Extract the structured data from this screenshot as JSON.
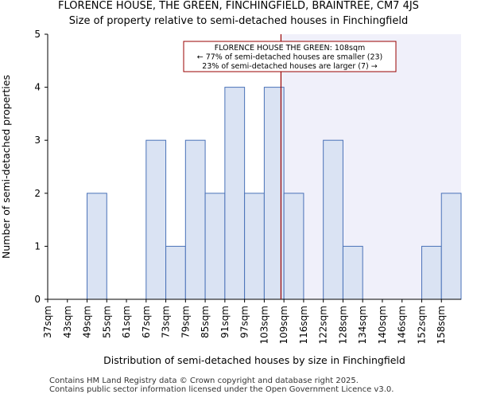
{
  "title_line1": "FLORENCE HOUSE, THE GREEN, FINCHINGFIELD, BRAINTREE, CM7 4JS",
  "title_line2": "Size of property relative to semi-detached houses in Finchingfield",
  "footer_line1": "Contains HM Land Registry data © Crown copyright and database right 2025.",
  "footer_line2": "Contains public sector information licensed under the Open Government Licence v3.0.",
  "colors": {
    "bar_fill": "#dae3f3",
    "bar_stroke": "#4a72b8",
    "highlight_fill": "#f0f0fa",
    "marker_line": "#990000",
    "annotation_border": "#990000"
  },
  "chart_data": {
    "type": "bar",
    "title": "FLORENCE HOUSE, THE GREEN, FINCHINGFIELD, BRAINTREE, CM7 4JS",
    "subtitle": "Size of property relative to semi-detached houses in Finchingfield",
    "xlabel": "Distribution of semi-detached houses by size in Finchingfield",
    "ylabel": "Number of semi-detached properties",
    "categories": [
      "37sqm",
      "43sqm",
      "49sqm",
      "55sqm",
      "61sqm",
      "67sqm",
      "73sqm",
      "79sqm",
      "85sqm",
      "91sqm",
      "97sqm",
      "103sqm",
      "109sqm",
      "116sqm",
      "122sqm",
      "128sqm",
      "134sqm",
      "140sqm",
      "146sqm",
      "152sqm",
      "158sqm"
    ],
    "values": [
      0,
      0,
      2,
      0,
      0,
      3,
      1,
      3,
      2,
      4,
      2,
      4,
      2,
      0,
      3,
      1,
      0,
      0,
      0,
      1,
      2
    ],
    "ylim": [
      0,
      5
    ],
    "yticks": [
      0,
      1,
      2,
      3,
      4,
      5
    ],
    "marker_value": 108,
    "marker_position_index": 11.85,
    "annotation": {
      "line1": "FLORENCE HOUSE THE GREEN: 108sqm",
      "line2": "← 77% of semi-detached houses are smaller (23)",
      "line3": "23% of semi-detached houses are larger (7) →"
    },
    "grid": false
  }
}
